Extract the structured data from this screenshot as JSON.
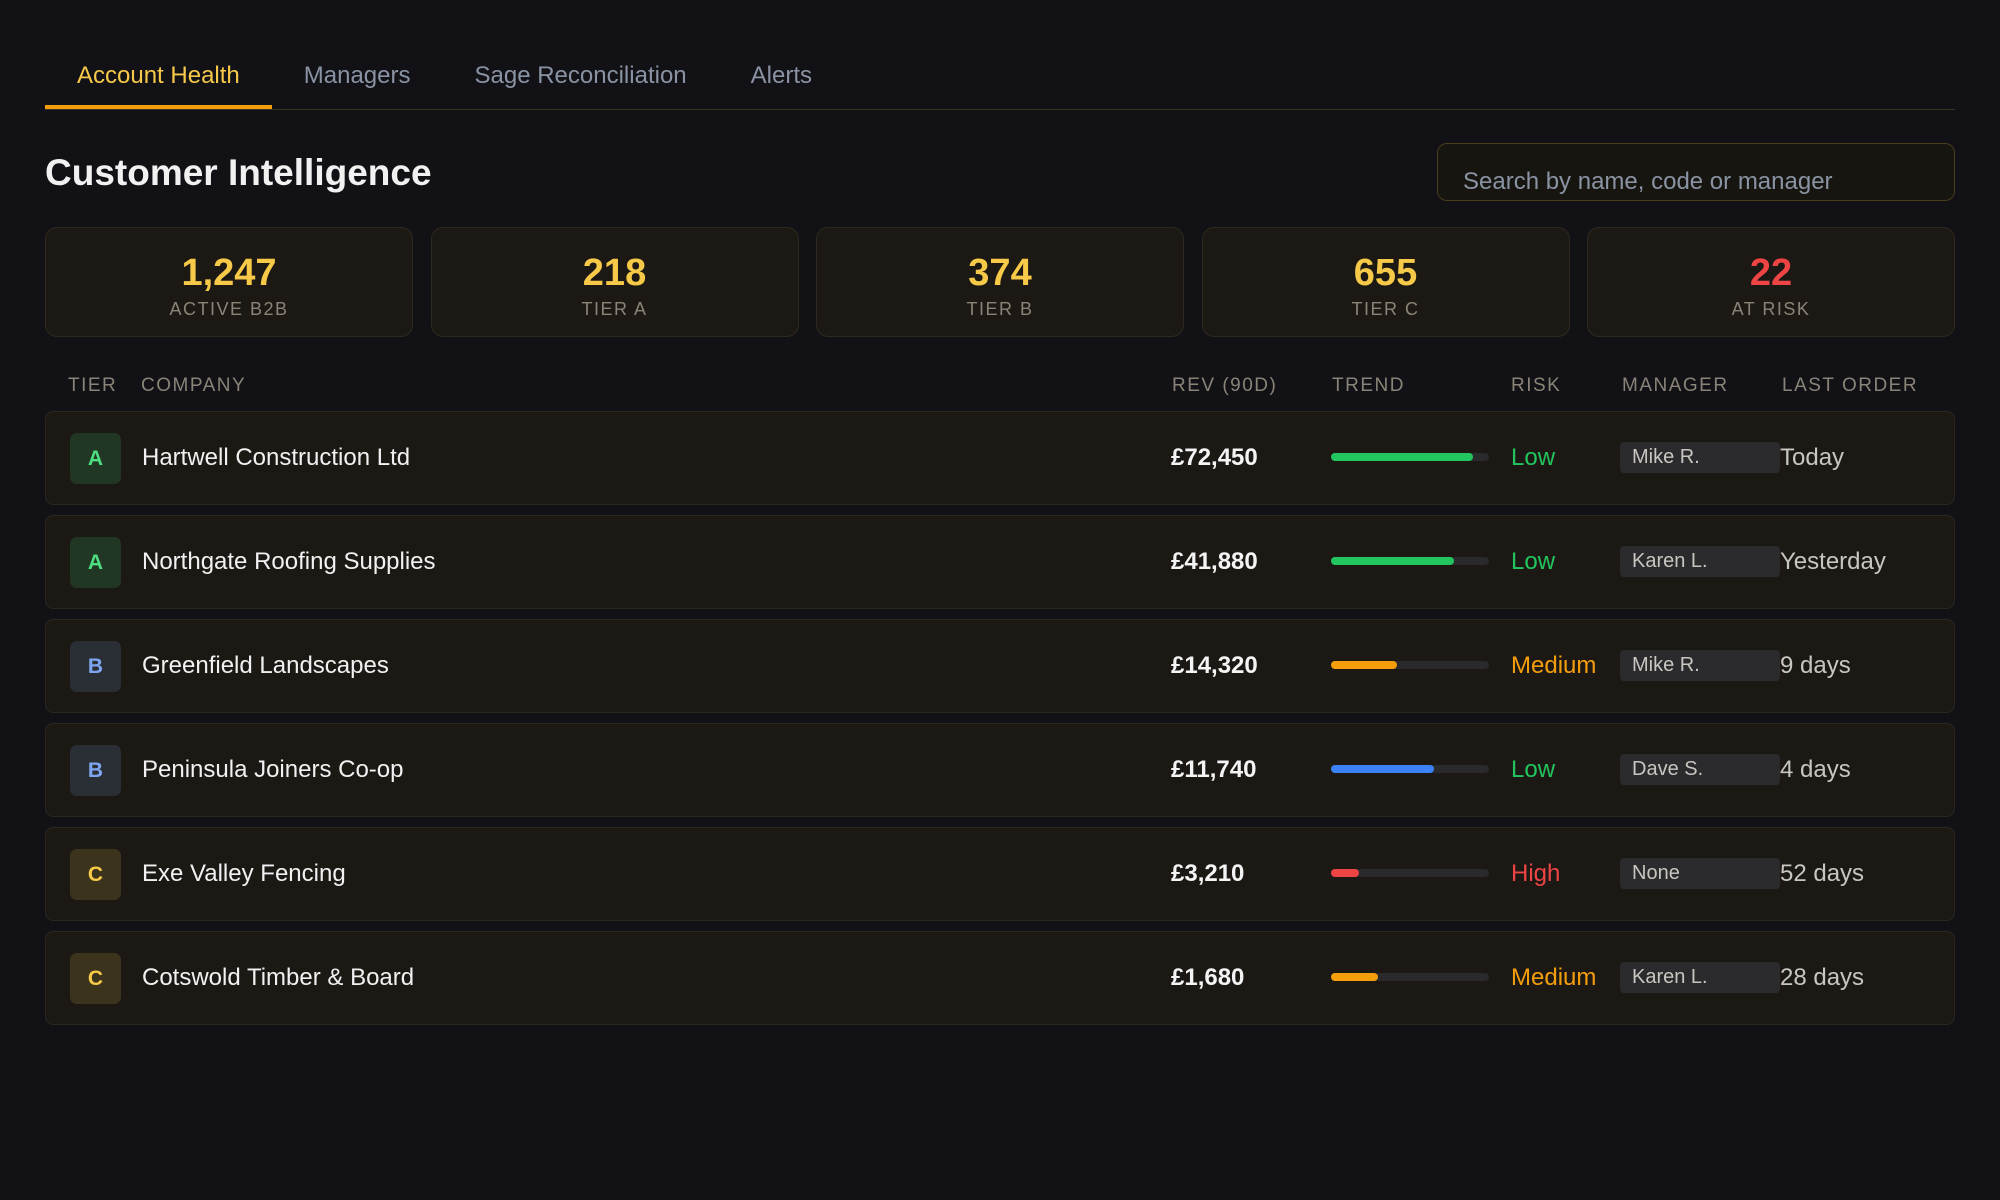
{
  "tabs": [
    "Account Health",
    "Managers",
    "Sage Reconciliation",
    "Alerts"
  ],
  "title": "Customer Intelligence",
  "search_placeholder": "Search by name, code or manager",
  "stats": [
    {
      "value": "1,247",
      "label": "ACTIVE B2B",
      "color": "#f7c948"
    },
    {
      "value": "218",
      "label": "TIER A",
      "color": "#f7c948"
    },
    {
      "value": "374",
      "label": "TIER B",
      "color": "#f7c948"
    },
    {
      "value": "655",
      "label": "TIER C",
      "color": "#f7c948"
    },
    {
      "value": "22",
      "label": "AT RISK",
      "color": "#ef4444"
    }
  ],
  "table": {
    "headers": [
      "TIER",
      "COMPANY",
      "REV (90D)",
      "TREND",
      "RISK",
      "MANAGER",
      "LAST ORDER"
    ],
    "rows": [
      {
        "tier": "A",
        "tier_color": "#4ade80",
        "company": "Hartwell Construction Ltd",
        "revenue": "£72,450",
        "trend": 90,
        "trend_color": "#22c55e",
        "risk": "Low",
        "risk_color": "#22c55e",
        "manager": "Mike R.",
        "last_order": "Today"
      },
      {
        "tier": "A",
        "tier_color": "#4ade80",
        "company": "Northgate Roofing Supplies",
        "revenue": "£41,880",
        "trend": 78,
        "trend_color": "#22c55e",
        "risk": "Low",
        "risk_color": "#22c55e",
        "manager": "Karen L.",
        "last_order": "Yesterday"
      },
      {
        "tier": "B",
        "tier_color": "#7ea6f0",
        "company": "Greenfield Landscapes",
        "revenue": "£14,320",
        "trend": 42,
        "trend_color": "#f59e0b",
        "risk": "Medium",
        "risk_color": "#f59e0b",
        "manager": "Mike R.",
        "last_order": "9 days"
      },
      {
        "tier": "B",
        "tier_color": "#7ea6f0",
        "company": "Peninsula Joiners Co-op",
        "revenue": "£11,740",
        "trend": 65,
        "trend_color": "#3b82f6",
        "risk": "Low",
        "risk_color": "#22c55e",
        "manager": "Dave S.",
        "last_order": "4 days"
      },
      {
        "tier": "C",
        "tier_color": "#f7c948",
        "company": "Exe Valley Fencing",
        "revenue": "£3,210",
        "trend": 18,
        "trend_color": "#ef4444",
        "risk": "High",
        "risk_color": "#ef4444",
        "manager": "None",
        "last_order": "52 days"
      },
      {
        "tier": "C",
        "tier_color": "#f7c948",
        "company": "Cotswold Timber & Board",
        "revenue": "£1,680",
        "trend": 30,
        "trend_color": "#f59e0b",
        "risk": "Medium",
        "risk_color": "#f59e0b",
        "manager": "Karen L.",
        "last_order": "28 days"
      }
    ]
  }
}
